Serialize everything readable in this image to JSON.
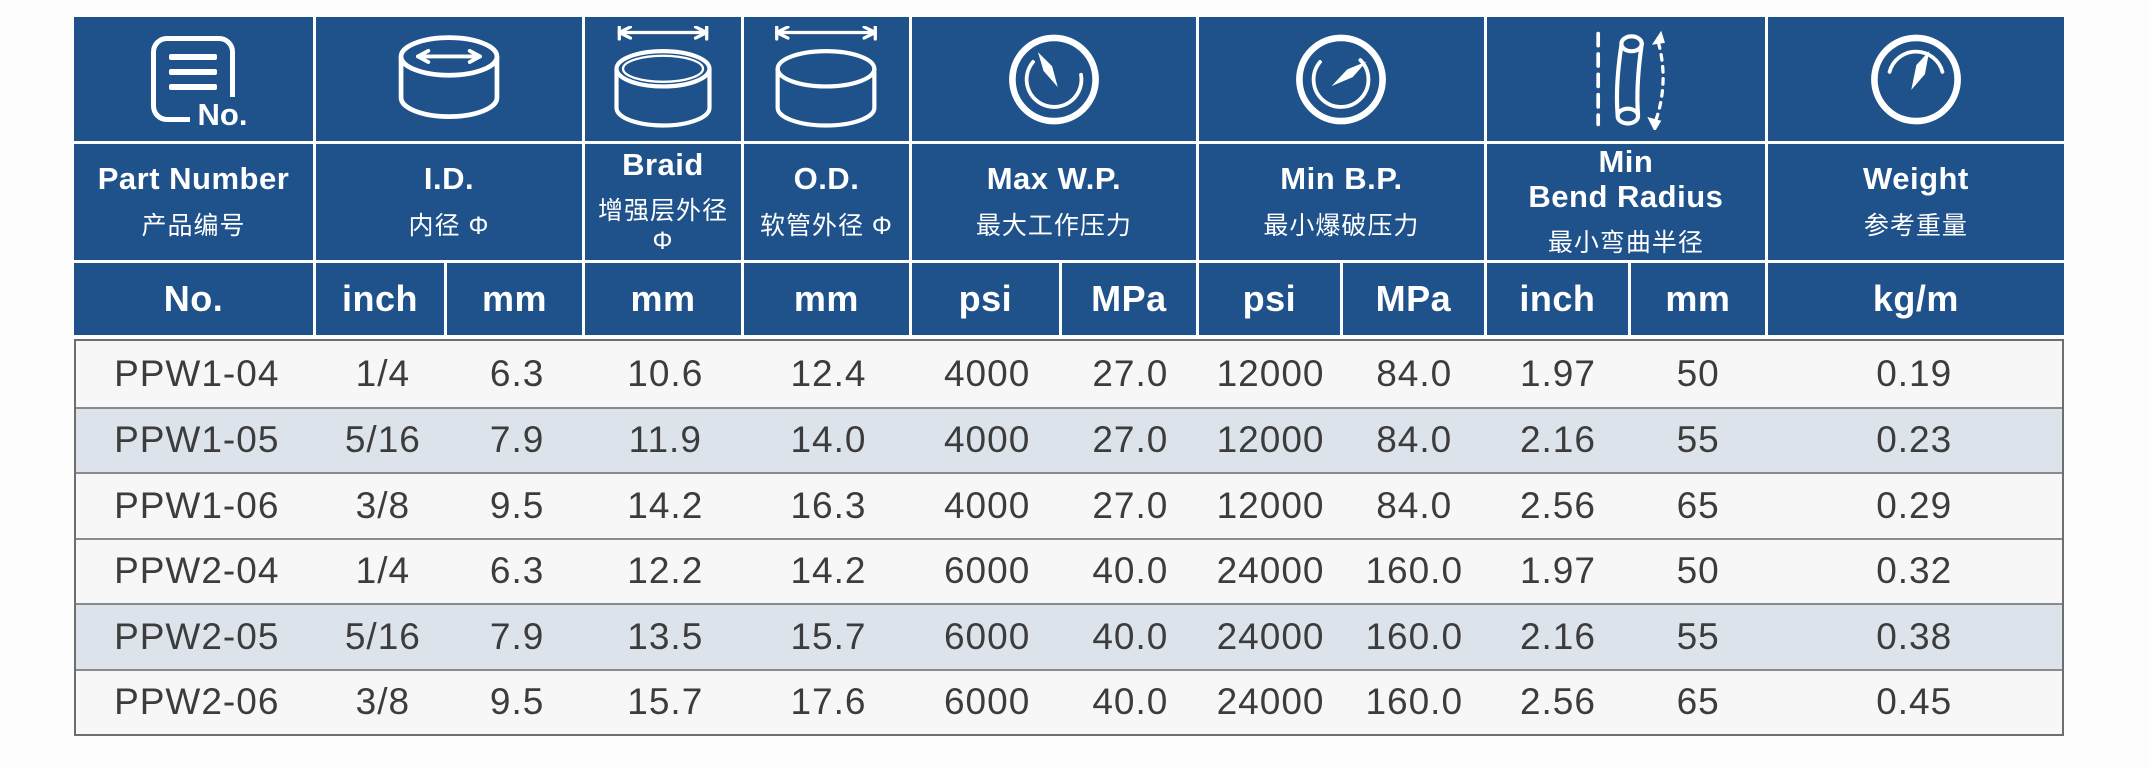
{
  "colors": {
    "header_blue": "#1f528a",
    "stripe_row": "#dce3ea",
    "row_bg": "#f7f7f8",
    "grid_line": "#8a8a8a",
    "data_text": "#3d3c3c"
  },
  "header": {
    "groups": [
      {
        "icon": "part-list-icon",
        "icon_label": "No.",
        "label": "Part Number",
        "sub": "产品编号"
      },
      {
        "icon": "inner-diameter-icon",
        "label": "I.D.",
        "sub": "内径 Φ"
      },
      {
        "icon": "braid-diameter-icon",
        "label": "Braid",
        "sub": "增强层外径 Φ"
      },
      {
        "icon": "outer-diameter-icon",
        "label": "O.D.",
        "sub": "软管外径 Φ"
      },
      {
        "icon": "pressure-gauge-icon",
        "label": "Max W.P.",
        "sub": "最大工作压力"
      },
      {
        "icon": "burst-gauge-icon",
        "label": "Min B.P.",
        "sub": "最小爆破压力"
      },
      {
        "icon": "bend-radius-icon",
        "label": "Min\nBend Radius",
        "sub": "最小弯曲半径"
      },
      {
        "icon": "weight-gauge-icon",
        "label": "Weight",
        "sub": "参考重量"
      }
    ],
    "units": [
      "No.",
      "inch",
      "mm",
      "mm",
      "mm",
      "psi",
      "MPa",
      "psi",
      "MPa",
      "inch",
      "mm",
      "kg/m"
    ]
  },
  "rows": [
    [
      "PPW1-04",
      "1/4",
      "6.3",
      "10.6",
      "12.4",
      "4000",
      "27.0",
      "12000",
      "84.0",
      "1.97",
      "50",
      "0.19"
    ],
    [
      "PPW1-05",
      "5/16",
      "7.9",
      "11.9",
      "14.0",
      "4000",
      "27.0",
      "12000",
      "84.0",
      "2.16",
      "55",
      "0.23"
    ],
    [
      "PPW1-06",
      "3/8",
      "9.5",
      "14.2",
      "16.3",
      "4000",
      "27.0",
      "12000",
      "84.0",
      "2.56",
      "65",
      "0.29"
    ],
    [
      "PPW2-04",
      "1/4",
      "6.3",
      "12.2",
      "14.2",
      "6000",
      "40.0",
      "24000",
      "160.0",
      "1.97",
      "50",
      "0.32"
    ],
    [
      "PPW2-05",
      "5/16",
      "7.9",
      "13.5",
      "15.7",
      "6000",
      "40.0",
      "24000",
      "160.0",
      "2.16",
      "55",
      "0.38"
    ],
    [
      "PPW2-06",
      "3/8",
      "9.5",
      "15.7",
      "17.6",
      "6000",
      "40.0",
      "24000",
      "160.0",
      "2.56",
      "65",
      "0.45"
    ]
  ]
}
